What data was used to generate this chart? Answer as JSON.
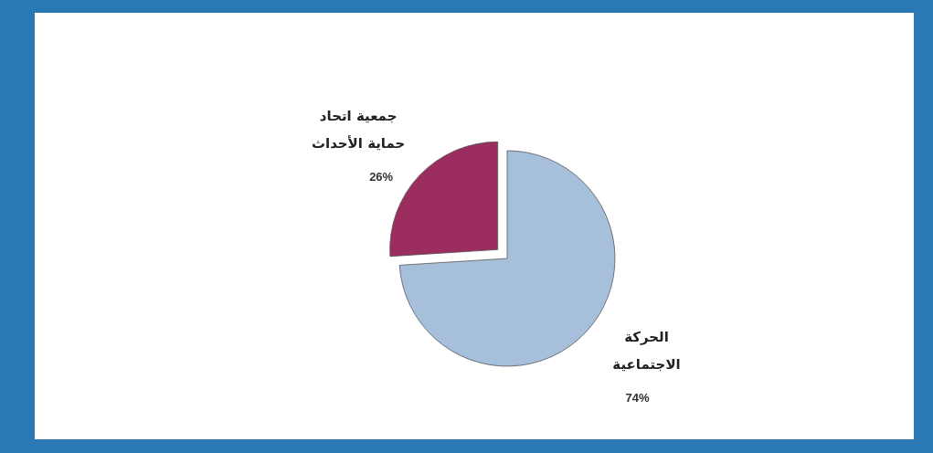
{
  "chart_data": {
    "type": "pie",
    "categories": [
      "جمعية اتحاد\nحماية الأحداث",
      "الحركة\nالاجتماعية"
    ],
    "values": [
      26,
      74
    ],
    "colors": [
      "#9b2d5f",
      "#a6c0dc"
    ],
    "value_labels": [
      "26%",
      "74%"
    ],
    "legend": false
  }
}
